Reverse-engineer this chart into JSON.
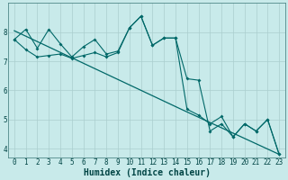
{
  "xlabel": "Humidex (Indice chaleur)",
  "bg_color": "#c8eaea",
  "grid_color": "#aacece",
  "line_color": "#006868",
  "xlim": [
    -0.5,
    23.5
  ],
  "ylim": [
    3.7,
    9.0
  ],
  "yticks": [
    4,
    5,
    6,
    7,
    8
  ],
  "xticks": [
    0,
    1,
    2,
    3,
    4,
    5,
    6,
    7,
    8,
    9,
    10,
    11,
    12,
    13,
    14,
    15,
    16,
    17,
    18,
    19,
    20,
    21,
    22,
    23
  ],
  "series1_x": [
    0,
    1,
    2,
    3,
    4,
    5,
    6,
    7,
    8,
    9,
    10,
    11,
    12,
    13,
    14,
    15,
    16,
    17,
    18,
    19,
    20,
    21,
    22,
    23
  ],
  "series1_y": [
    7.75,
    8.1,
    7.45,
    8.1,
    7.6,
    7.15,
    7.5,
    7.75,
    7.25,
    7.35,
    8.15,
    8.55,
    7.55,
    7.8,
    7.8,
    6.4,
    6.35,
    4.6,
    4.85,
    4.4,
    4.85,
    4.6,
    5.0,
    3.8
  ],
  "series2_x": [
    0,
    1,
    2,
    3,
    4,
    5,
    6,
    7,
    8,
    9,
    10,
    11,
    12,
    13,
    14,
    15,
    16,
    17,
    18,
    19,
    20,
    21,
    22,
    23
  ],
  "series2_y": [
    7.75,
    7.4,
    7.15,
    7.2,
    7.25,
    7.1,
    7.2,
    7.3,
    7.15,
    7.3,
    8.15,
    8.55,
    7.55,
    7.8,
    7.8,
    5.35,
    5.15,
    4.85,
    5.1,
    4.4,
    4.85,
    4.6,
    5.0,
    3.8
  ],
  "trend_x": [
    0,
    14.5,
    23
  ],
  "trend_y": [
    8.05,
    5.35,
    3.8
  ],
  "xlabel_fontsize": 7,
  "tick_fontsize": 5.5
}
